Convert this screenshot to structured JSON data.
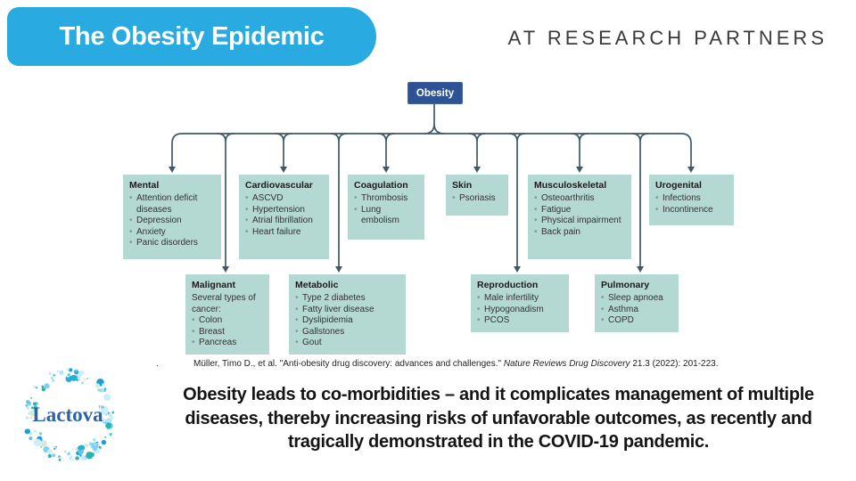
{
  "header": {
    "title": "The Obesity Epidemic",
    "brand": "AT RESEARCH PARTNERS"
  },
  "diagram": {
    "root": "Obesity",
    "boxes": [
      {
        "id": "mental",
        "title": "Mental",
        "items": [
          "Attention deficit diseases",
          "Depression",
          "Anxiety",
          "Panic disorders"
        ]
      },
      {
        "id": "cardiovascular",
        "title": "Cardiovascular",
        "items": [
          "ASCVD",
          "Hypertension",
          "Atrial fibrillation",
          "Heart failure"
        ]
      },
      {
        "id": "coagulation",
        "title": "Coagulation",
        "items": [
          "Thrombosis",
          "Lung embolism"
        ]
      },
      {
        "id": "skin",
        "title": "Skin",
        "items": [
          "Psoriasis"
        ]
      },
      {
        "id": "musculoskeletal",
        "title": "Musculoskeletal",
        "items": [
          "Osteoarthritis",
          "Fatigue",
          "Physical impairment",
          "Back pain"
        ]
      },
      {
        "id": "urogenital",
        "title": "Urogenital",
        "items": [
          "Infections",
          "Incontinence"
        ]
      },
      {
        "id": "malignant",
        "title": "Malignant",
        "subtitle": "Several types of cancer:",
        "items": [
          "Colon",
          "Breast",
          "Pancreas"
        ]
      },
      {
        "id": "metabolic",
        "title": "Metabolic",
        "items": [
          "Type 2 diabetes",
          "Fatty liver disease",
          "Dyslipidemia",
          "Gallstones",
          "Gout"
        ]
      },
      {
        "id": "reproduction",
        "title": "Reproduction",
        "items": [
          "Male infertility",
          "Hypogonadism",
          "PCOS"
        ]
      },
      {
        "id": "pulmonary",
        "title": "Pulmonary",
        "items": [
          "Sleep apnoea",
          "Asthma",
          "COPD"
        ]
      }
    ]
  },
  "citation": {
    "leading_mark": ".",
    "text_before_journal": "Müller, Timo D., et al. \"Anti-obesity drug discovery: advances and challenges.\" ",
    "journal": "Nature Reviews Drug Discovery",
    "text_after_journal": " 21.3 (2022): 201-223."
  },
  "body": {
    "message": "Obesity leads to co-morbidities – and it complicates management of multiple diseases, thereby increasing risks of unfavorable outcomes, as recently and tragically demonstrated in the COVID-19 pandemic."
  },
  "logo": {
    "name": "Lactova",
    "tm": "™"
  },
  "colors": {
    "banner_blue": "#29ABE2",
    "node_blue": "#2E5395",
    "box_teal": "#B4D8D2",
    "connector": "#3E5A66",
    "logo_text_blue": "#2B63A5"
  }
}
